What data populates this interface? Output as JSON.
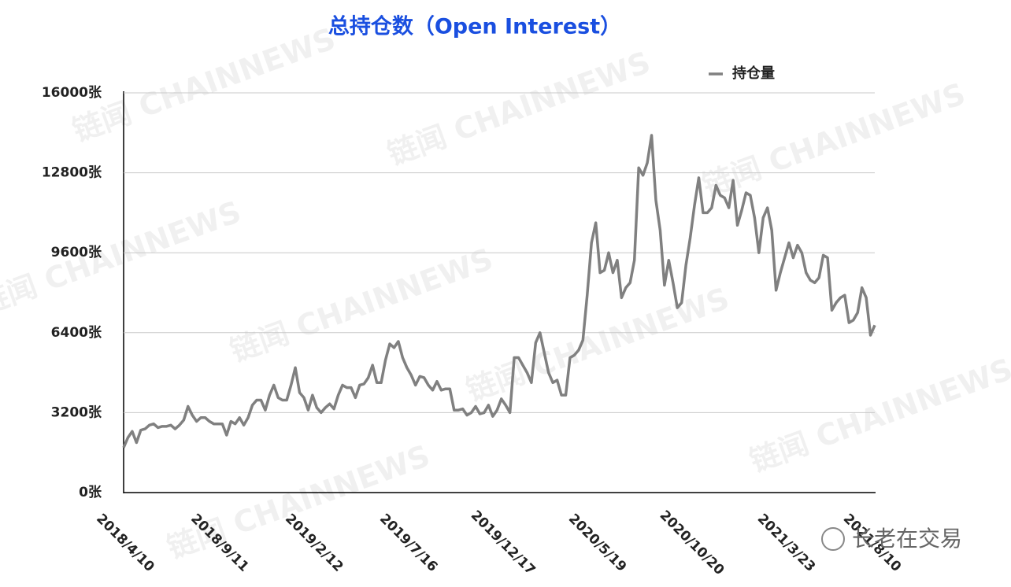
{
  "chart_data": {
    "type": "line",
    "title": "总持仓数（Open Interest）",
    "watermark": "链闻 CHAINNEWS",
    "source_tag": "长老在交易",
    "categories": [
      "2018/4/10",
      null,
      null,
      null,
      null,
      null,
      null,
      null,
      null,
      null,
      null,
      null,
      null,
      null,
      null,
      null,
      null,
      null,
      null,
      null,
      null,
      null,
      "2018/9/11",
      null,
      null,
      null,
      null,
      null,
      null,
      null,
      null,
      null,
      null,
      null,
      null,
      null,
      null,
      null,
      null,
      null,
      null,
      null,
      null,
      null,
      "2019/2/12",
      null,
      null,
      null,
      null,
      null,
      null,
      null,
      null,
      null,
      null,
      null,
      null,
      null,
      null,
      null,
      null,
      null,
      null,
      null,
      null,
      null,
      "2019/7/16",
      null,
      null,
      null,
      null,
      null,
      null,
      null,
      null,
      null,
      null,
      null,
      null,
      null,
      null,
      null,
      null,
      null,
      null,
      null,
      null,
      null,
      "2019/12/17",
      null,
      null,
      null,
      null,
      null,
      null,
      null,
      null,
      null,
      null,
      null,
      null,
      null,
      null,
      null,
      null,
      null,
      null,
      null,
      null,
      null,
      "2020/5/19",
      null,
      null,
      null,
      null,
      null,
      null,
      null,
      null,
      null,
      null,
      null,
      null,
      null,
      null,
      null,
      null,
      null,
      null,
      null,
      null,
      null,
      "2020/10/20",
      null,
      null,
      null,
      null,
      null,
      null,
      null,
      null,
      null,
      null,
      null,
      null,
      null,
      null,
      null,
      null,
      null,
      null,
      null,
      null,
      null,
      "2021/3/23",
      null,
      null,
      null,
      null,
      null,
      null,
      null,
      null,
      null,
      null,
      null,
      null,
      null,
      null,
      null,
      null,
      null,
      null,
      null,
      "2021/8/10",
      null
    ],
    "series": [
      {
        "name": "持仓量",
        "color": "#808080",
        "values": [
          1800,
          2200,
          2450,
          2000,
          2500,
          2550,
          2700,
          2750,
          2600,
          2650,
          2650,
          2700,
          2550,
          2700,
          2900,
          3450,
          3100,
          2850,
          3000,
          3000,
          2850,
          2750,
          2750,
          2750,
          2300,
          2850,
          2750,
          3000,
          2700,
          3000,
          3500,
          3700,
          3700,
          3300,
          3900,
          4300,
          3800,
          3700,
          3700,
          4300,
          5000,
          4000,
          3800,
          3300,
          3900,
          3400,
          3200,
          3400,
          3550,
          3350,
          3900,
          4300,
          4200,
          4200,
          3800,
          4300,
          4350,
          4600,
          5100,
          4400,
          4400,
          5300,
          5950,
          5800,
          6050,
          5400,
          5000,
          4700,
          4300,
          4650,
          4600,
          4300,
          4100,
          4450,
          4100,
          4150,
          4150,
          3300,
          3300,
          3350,
          3100,
          3200,
          3450,
          3150,
          3200,
          3500,
          3050,
          3300,
          3750,
          3500,
          3200,
          5400,
          5400,
          5100,
          4800,
          4400,
          6000,
          6400,
          5600,
          4800,
          4400,
          4500,
          3900,
          3900,
          5400,
          5500,
          5700,
          6100,
          7900,
          10000,
          10800,
          8800,
          8900,
          9600,
          8800,
          9300,
          7800,
          8200,
          8400,
          9300,
          13000,
          12700,
          13200,
          14300,
          11700,
          10500,
          8300,
          9300,
          8400,
          7400,
          7600,
          9100,
          10200,
          11500,
          12600,
          11200,
          11200,
          11400,
          12300,
          11900,
          11800,
          11400,
          12500,
          10700,
          11300,
          12000,
          11900,
          11000,
          9600,
          11000,
          11400,
          10500,
          8100,
          8800,
          9400,
          10000,
          9400,
          9900,
          9600,
          8800,
          8500,
          8400,
          8600,
          9500,
          9400,
          7300,
          7600,
          7800,
          7900,
          6800,
          6900,
          7200,
          8200,
          7800,
          6300,
          6700
        ]
      }
    ],
    "ylim": [
      0,
      16000
    ],
    "yticks": [
      {
        "value": 0,
        "label": "0张"
      },
      {
        "value": 3200,
        "label": "3200张"
      },
      {
        "value": 6400,
        "label": "6400张"
      },
      {
        "value": 9600,
        "label": "9600张"
      },
      {
        "value": 12800,
        "label": "12800张"
      },
      {
        "value": 16000,
        "label": "16000张"
      }
    ],
    "grid": true,
    "legend": "top-right"
  }
}
